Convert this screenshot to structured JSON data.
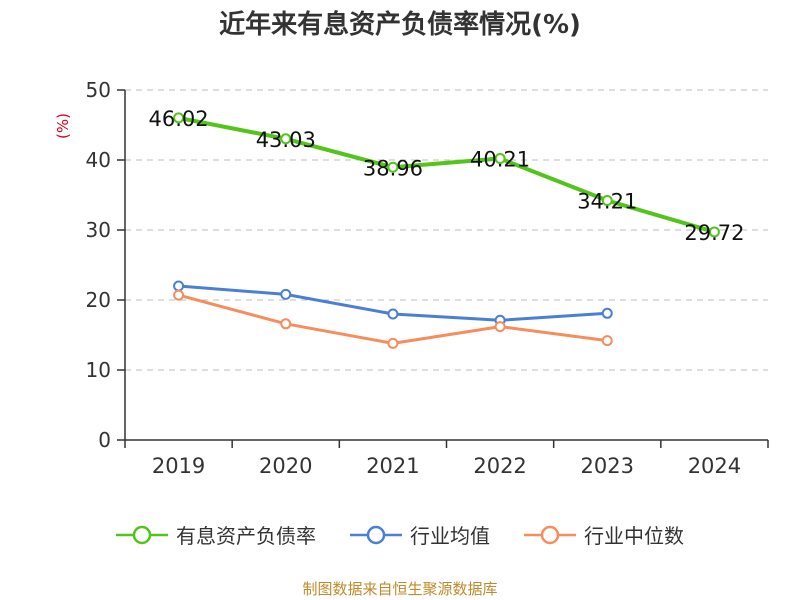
{
  "chart_data": {
    "type": "line",
    "title": "近年来有息资产负债率情况(%)",
    "ylabel": "(%)",
    "xlabel": "",
    "ylim": [
      0,
      50
    ],
    "yticks": [
      0,
      10,
      20,
      30,
      40,
      50
    ],
    "categories": [
      "2019",
      "2020",
      "2021",
      "2022",
      "2023",
      "2024"
    ],
    "grid": "horizontal-dashed",
    "series": [
      {
        "name": "有息资产负债率",
        "color": "#52c41a",
        "values": [
          46.02,
          43.03,
          38.96,
          40.21,
          34.21,
          29.72
        ],
        "labels": [
          "46.02",
          "43.03",
          "38.96",
          "40.21",
          "34.21",
          "29.72"
        ]
      },
      {
        "name": "行业均值",
        "color": "#4a7fd6",
        "values": [
          22.0,
          20.8,
          18.0,
          17.1,
          18.1,
          null
        ]
      },
      {
        "name": "行业中位数",
        "color": "#f58d5c",
        "values": [
          20.7,
          16.6,
          13.8,
          16.2,
          14.2,
          null
        ]
      }
    ]
  },
  "source": "制图数据来自恒生聚源数据库",
  "legend": [
    "有息资产负债率",
    "行业均值",
    "行业中位数"
  ]
}
